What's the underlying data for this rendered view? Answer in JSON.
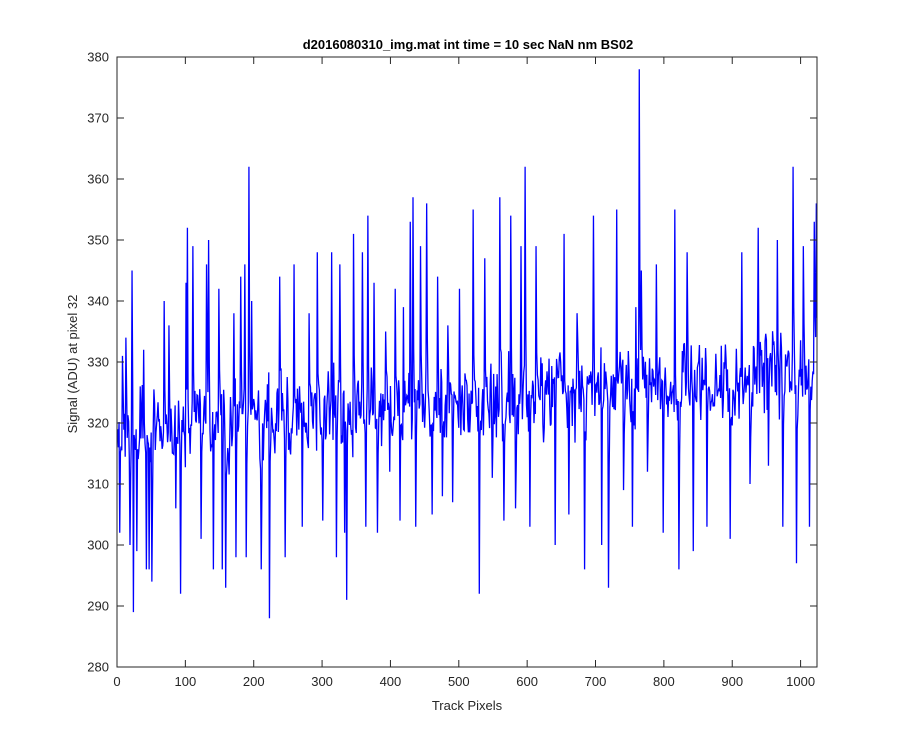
{
  "chart_data": {
    "type": "line",
    "title": "d2016080310_img.mat int time = 10 sec  NaN nm BS02",
    "xlabel": "Track Pixels",
    "ylabel": "Signal (ADU) at pixel 32",
    "xlim": [
      0,
      1024
    ],
    "ylim": [
      280,
      380
    ],
    "xticks": [
      0,
      100,
      200,
      300,
      400,
      500,
      600,
      700,
      800,
      900,
      1000
    ],
    "yticks": [
      280,
      290,
      300,
      310,
      320,
      330,
      340,
      350,
      360,
      370,
      380
    ],
    "grid": false,
    "box": true,
    "series": [
      {
        "color": "#0000ff",
        "description": "Noisy signal: ~320 at low pixels rising to ~328 at high pixels; spikes shown as explicit points",
        "baseline_start": 319,
        "baseline_end": 328,
        "noise_amplitude": 9,
        "points": [
          [
            1,
            316
          ],
          [
            3,
            302
          ],
          [
            7,
            331
          ],
          [
            12,
            334
          ],
          [
            18,
            300
          ],
          [
            21,
            345
          ],
          [
            23,
            289
          ],
          [
            28,
            299
          ],
          [
            33,
            326
          ],
          [
            38,
            332
          ],
          [
            42,
            296
          ],
          [
            46,
            296
          ],
          [
            50,
            294
          ],
          [
            68,
            340
          ],
          [
            75,
            336
          ],
          [
            85,
            306
          ],
          [
            92,
            292
          ],
          [
            100,
            343
          ],
          [
            102,
            352
          ],
          [
            110,
            349
          ],
          [
            122,
            301
          ],
          [
            130,
            346
          ],
          [
            133,
            350
          ],
          [
            140,
            296
          ],
          [
            148,
            342
          ],
          [
            153,
            296
          ],
          [
            158,
            293
          ],
          [
            170,
            338
          ],
          [
            173,
            298
          ],
          [
            180,
            344
          ],
          [
            186,
            346
          ],
          [
            188,
            298
          ],
          [
            192,
            362
          ],
          [
            196,
            340
          ],
          [
            210,
            296
          ],
          [
            222,
            288
          ],
          [
            237,
            344
          ],
          [
            245,
            298
          ],
          [
            258,
            346
          ],
          [
            270,
            303
          ],
          [
            280,
            338
          ],
          [
            292,
            348
          ],
          [
            300,
            304
          ],
          [
            313,
            348
          ],
          [
            320,
            298
          ],
          [
            325,
            346
          ],
          [
            332,
            302
          ],
          [
            335,
            291
          ],
          [
            345,
            351
          ],
          [
            358,
            348
          ],
          [
            363,
            303
          ],
          [
            366,
            354
          ],
          [
            375,
            343
          ],
          [
            380,
            302
          ],
          [
            392,
            335
          ],
          [
            398,
            312
          ],
          [
            406,
            342
          ],
          [
            413,
            304
          ],
          [
            418,
            339
          ],
          [
            428,
            353
          ],
          [
            432,
            357
          ],
          [
            436,
            303
          ],
          [
            443,
            349
          ],
          [
            452,
            356
          ],
          [
            460,
            305
          ],
          [
            468,
            344
          ],
          [
            475,
            308
          ],
          [
            483,
            336
          ],
          [
            490,
            307
          ],
          [
            500,
            342
          ],
          [
            510,
            327
          ],
          [
            520,
            355
          ],
          [
            525,
            321
          ],
          [
            529,
            292
          ],
          [
            537,
            347
          ],
          [
            548,
            311
          ],
          [
            559,
            357
          ],
          [
            565,
            304
          ],
          [
            575,
            354
          ],
          [
            582,
            306
          ],
          [
            590,
            349
          ],
          [
            596,
            362
          ],
          [
            603,
            303
          ],
          [
            612,
            349
          ],
          [
            626,
            327
          ],
          [
            640,
            300
          ],
          [
            648,
            330
          ],
          [
            653,
            351
          ],
          [
            660,
            305
          ],
          [
            672,
            338
          ],
          [
            683,
            296
          ],
          [
            696,
            354
          ],
          [
            708,
            300
          ],
          [
            718,
            293
          ],
          [
            730,
            355
          ],
          [
            740,
            309
          ],
          [
            753,
            303
          ],
          [
            758,
            339
          ],
          [
            763,
            378
          ],
          [
            766,
            345
          ],
          [
            775,
            312
          ],
          [
            788,
            346
          ],
          [
            798,
            302
          ],
          [
            815,
            355
          ],
          [
            821,
            296
          ],
          [
            833,
            348
          ],
          [
            842,
            299
          ],
          [
            862,
            303
          ],
          [
            878,
            325
          ],
          [
            896,
            301
          ],
          [
            913,
            348
          ],
          [
            925,
            310
          ],
          [
            937,
            352
          ],
          [
            952,
            313
          ],
          [
            965,
            350
          ],
          [
            973,
            303
          ],
          [
            988,
            362
          ],
          [
            993,
            297
          ],
          [
            1003,
            349
          ],
          [
            1012,
            303
          ],
          [
            1019,
            353
          ],
          [
            1022,
            356
          ]
        ]
      }
    ]
  }
}
